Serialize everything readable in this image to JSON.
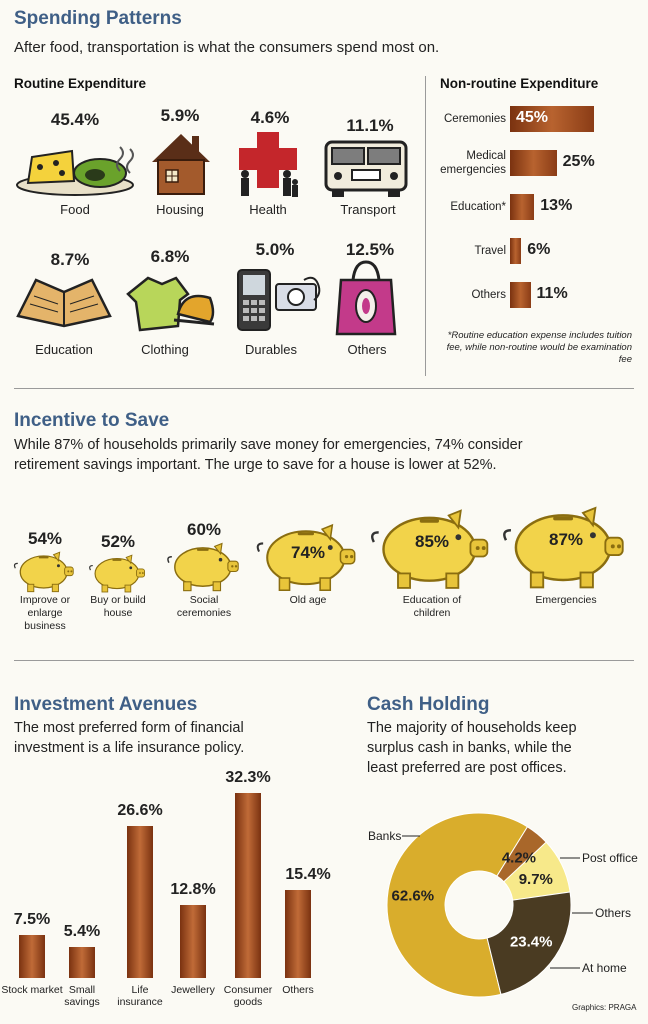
{
  "spending": {
    "title": "Spending Patterns",
    "subtitle": "After food, transportation is what the consumers spend most on.",
    "routine": {
      "heading": "Routine Expenditure",
      "items": [
        {
          "label": "Food",
          "value": "45.4%",
          "icon": "food-icon"
        },
        {
          "label": "Housing",
          "value": "5.9%",
          "icon": "house-icon"
        },
        {
          "label": "Health",
          "value": "4.6%",
          "icon": "health-cross-icon"
        },
        {
          "label": "Transport",
          "value": "11.1%",
          "icon": "bus-icon"
        },
        {
          "label": "Education",
          "value": "8.7%",
          "icon": "book-icon"
        },
        {
          "label": "Clothing",
          "value": "6.8%",
          "icon": "clothing-icon"
        },
        {
          "label": "Durables",
          "value": "5.0%",
          "icon": "phone-camera-icon"
        },
        {
          "label": "Others",
          "value": "12.5%",
          "icon": "shopping-bag-icon"
        }
      ]
    },
    "nonroutine": {
      "heading": "Non-routine Expenditure",
      "items": [
        {
          "label": "Ceremonies",
          "value": "45%",
          "pct": 45
        },
        {
          "label": "Medical emergencies",
          "value": "25%",
          "pct": 25
        },
        {
          "label": "Education*",
          "value": "13%",
          "pct": 13
        },
        {
          "label": "Travel",
          "value": "6%",
          "pct": 6
        },
        {
          "label": "Others",
          "value": "11%",
          "pct": 11
        }
      ],
      "note": "*Routine education expense includes tuition fee, while non-routine would be examination fee"
    }
  },
  "incentive": {
    "title": "Incentive to Save",
    "subtitle_line1": "While 87% of households primarily save money for emergencies, 74% consider",
    "subtitle_line2": "retirement savings important. The urge to save for a house is lower at 52%.",
    "items": [
      {
        "label": "Improve or enlarge business",
        "value": "54%",
        "pct": 54
      },
      {
        "label": "Buy or build house",
        "value": "52%",
        "pct": 52
      },
      {
        "label": "Social ceremonies",
        "value": "60%",
        "pct": 60
      },
      {
        "label": "Old age",
        "value": "74%",
        "pct": 74
      },
      {
        "label": "Education of children",
        "value": "85%",
        "pct": 85
      },
      {
        "label": "Emergencies",
        "value": "87%",
        "pct": 87
      }
    ]
  },
  "investment": {
    "title": "Investment Avenues",
    "subtitle_line1": "The most preferred form of financial",
    "subtitle_line2": "investment is a life insurance policy."
  },
  "cash": {
    "title": "Cash Holding",
    "subtitle_line1": "The majority of households keep",
    "subtitle_line2": "surplus cash in banks, while the",
    "subtitle_line3": "least preferred are post offices."
  },
  "credit": "Graphics: PRAGA",
  "colors": {
    "title": "#3f5f86",
    "bar": "#a4532a",
    "pig": "#f2d34a",
    "banks": "#d9ad2c",
    "post_office": "#a9672a",
    "others": "#f7e98a",
    "at_home": "#4a3b22"
  },
  "chart_data": [
    {
      "type": "bar",
      "title": "Non-routine Expenditure",
      "categories": [
        "Ceremonies",
        "Medical emergencies",
        "Education*",
        "Travel",
        "Others"
      ],
      "values": [
        45,
        25,
        13,
        6,
        11
      ]
    },
    {
      "type": "bar",
      "title": "Investment Avenues",
      "categories": [
        "Stock market",
        "Small savings",
        "Life insurance",
        "Jewellery",
        "Consumer goods",
        "Others"
      ],
      "values": [
        7.5,
        5.4,
        26.6,
        12.8,
        32.3,
        15.4
      ],
      "value_labels": [
        "7.5%",
        "5.4%",
        "26.6%",
        "12.8%",
        "32.3%",
        "15.4%"
      ]
    },
    {
      "type": "pie",
      "title": "Cash Holding",
      "categories": [
        "Banks",
        "Post office",
        "Others",
        "At home"
      ],
      "values": [
        62.6,
        4.2,
        9.7,
        23.4
      ],
      "value_labels": [
        "62.6%",
        "4.2%",
        "9.7%",
        "23.4%"
      ]
    }
  ]
}
